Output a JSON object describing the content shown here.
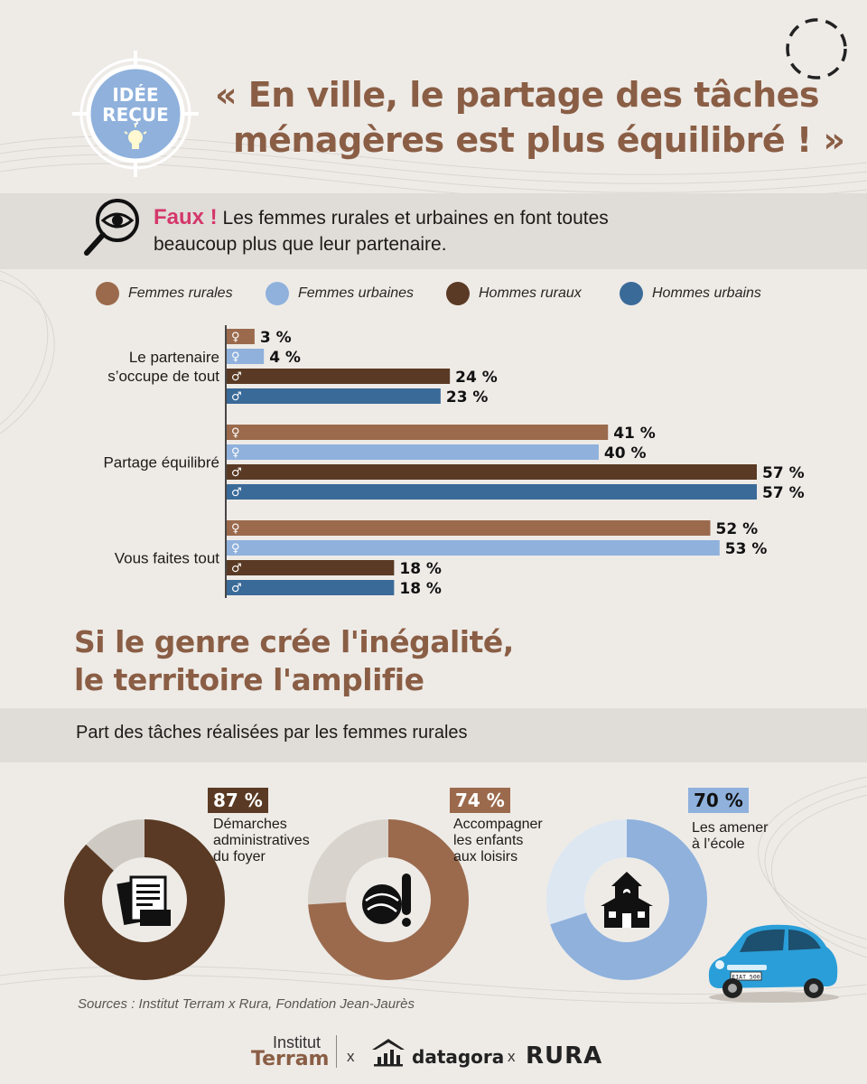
{
  "header": {
    "badge_line1": "IDÉE",
    "badge_line2": "REÇUE",
    "title_line1": "« En ville, le partage des tâches",
    "title_line2": "ménagères est plus équilibré ! »"
  },
  "faux": {
    "word": "Faux !",
    "text_line1": "Les femmes rurales et urbaines en font toutes",
    "text_line2": "beaucoup plus que leur partenaire."
  },
  "legend": [
    {
      "label": "Femmes rurales",
      "color": "#9b6a4c"
    },
    {
      "label": "Femmes urbaines",
      "color": "#8fb1dc"
    },
    {
      "label": "Hommes ruraux",
      "color": "#5a3a24"
    },
    {
      "label": "Hommes urbains",
      "color": "#3a6a98"
    }
  ],
  "chart_data": {
    "type": "bar",
    "orientation": "horizontal",
    "categories": [
      {
        "label_lines": [
          "Le partenaire",
          "s’occupe de tout"
        ]
      },
      {
        "label_lines": [
          "Partage équilibré"
        ]
      },
      {
        "label_lines": [
          "Vous faites tout"
        ]
      }
    ],
    "series": [
      {
        "name": "Femmes rurales",
        "symbol": "♀",
        "color": "#9b6a4c",
        "values": [
          3,
          41,
          52
        ],
        "value_labels": [
          "3 %",
          "41 %",
          "52 %"
        ]
      },
      {
        "name": "Femmes urbaines",
        "symbol": "♀",
        "color": "#8fb1dc",
        "values": [
          4,
          40,
          53
        ],
        "value_labels": [
          "4 %",
          "40 %",
          "53 %"
        ]
      },
      {
        "name": "Hommes ruraux",
        "symbol": "♂",
        "color": "#5a3a24",
        "values": [
          24,
          57,
          18
        ],
        "value_labels": [
          "24 %",
          "57 %",
          "18 %"
        ]
      },
      {
        "name": "Hommes urbains",
        "symbol": "♂",
        "color": "#3a6a98",
        "values": [
          23,
          57,
          18
        ],
        "value_labels": [
          "23 %",
          "57 %",
          "18 %"
        ]
      }
    ],
    "xlim": [
      0,
      57
    ],
    "legend_position": "top",
    "grid": false
  },
  "section2": {
    "title_line1": "Si le genre crée l'inégalité,",
    "title_line2": "le territoire l'amplifie",
    "subtitle": "Part des tâches réalisées par les femmes rurales"
  },
  "donuts": [
    {
      "value": 87,
      "pct_label": "87 %",
      "label_lines": [
        "Démarches",
        "administratives",
        "du foyer"
      ],
      "color": "#5a3a24",
      "rest_color": "#cfc9c3",
      "badge_bg": "#5a3a24",
      "badge_fg": "#ffffff",
      "icon": "documents-icon"
    },
    {
      "value": 74,
      "pct_label": "74 %",
      "label_lines": [
        "Accompagner",
        "les enfants",
        "aux loisirs"
      ],
      "color": "#9b6a4c",
      "rest_color": "#d9d3cd",
      "badge_bg": "#9b6a4c",
      "badge_fg": "#ffffff",
      "icon": "sports-ball-icon"
    },
    {
      "value": 70,
      "pct_label": "70 %",
      "label_lines": [
        "Les amener",
        "à l’école"
      ],
      "color": "#8fb1dc",
      "rest_color": "#dde7f2",
      "badge_bg": "#8fb1dc",
      "badge_fg": "#111111",
      "icon": "school-icon"
    }
  ],
  "sources": "Sources : Institut Terram x Rura, Fondation Jean-Jaurès",
  "footer": {
    "institut": "Institut",
    "terram": "Terram",
    "x1": "x",
    "datagora": "datagora",
    "x2": "x",
    "rura": "RURA",
    "car_plate": "EIAT 500"
  }
}
